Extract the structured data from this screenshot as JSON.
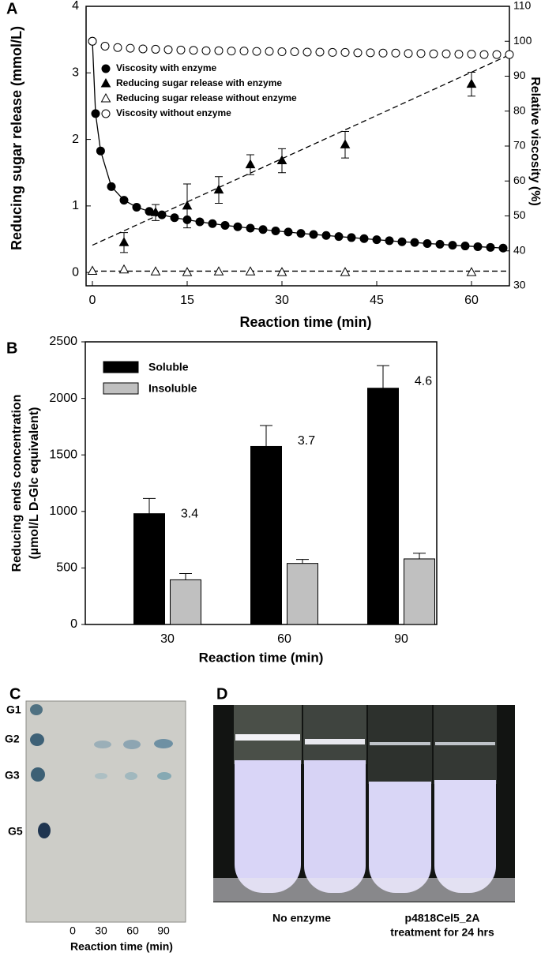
{
  "chart_data": [
    {
      "type": "scatter",
      "panel": "A",
      "xlabel": "Reaction time (min)",
      "ylabel": "Reducing sugar release (mmol/L)",
      "y2label": "Relative viscosity (%)",
      "xlim": [
        -1,
        66
      ],
      "ylim": [
        -0.2,
        4
      ],
      "y2lim": [
        30,
        110
      ],
      "xticks": [
        0,
        15,
        30,
        45,
        60
      ],
      "yticks": [
        0,
        1,
        2,
        3,
        4
      ],
      "y2ticks": [
        30,
        40,
        50,
        60,
        70,
        80,
        90,
        100,
        110
      ],
      "series": [
        {
          "name": "Viscosity with enzyme",
          "marker": "filled-circle",
          "line": "solid",
          "axis": "y2",
          "color": "#000000",
          "x": [
            0,
            0.5,
            1.3,
            3,
            5,
            7,
            9,
            11,
            13,
            15,
            17,
            19,
            21,
            23,
            25,
            27,
            29,
            31,
            33,
            35,
            37,
            39,
            41,
            43,
            45,
            47,
            49,
            51,
            53,
            55,
            57,
            59,
            61,
            63,
            65
          ],
          "values": [
            100,
            79.3,
            68.6,
            58.4,
            54.5,
            52.5,
            51.3,
            50.3,
            49.5,
            48.9,
            48.3,
            47.8,
            47.3,
            46.9,
            46.5,
            46.1,
            45.7,
            45.4,
            45.0,
            44.7,
            44.4,
            44.1,
            43.8,
            43.5,
            43.2,
            42.9,
            42.6,
            42.4,
            42.1,
            41.9,
            41.6,
            41.4,
            41.2,
            41.0,
            40.8
          ]
        },
        {
          "name": "Reducing sugar release with enzyme",
          "marker": "filled-triangle",
          "axis": "y",
          "color": "#000000",
          "x": [
            5,
            10,
            15,
            20,
            25,
            30,
            40,
            60
          ],
          "values": [
            0.45,
            0.9,
            1.0,
            1.24,
            1.62,
            1.68,
            1.92,
            2.83
          ],
          "errors": [
            0.15,
            0.12,
            0.33,
            0.2,
            0.15,
            0.18,
            0.2,
            0.18
          ]
        },
        {
          "name": "Reducing sugar release without enzyme",
          "marker": "open-triangle",
          "axis": "y",
          "color": "#000000",
          "x": [
            0,
            5,
            10,
            15,
            20,
            25,
            30,
            40,
            60
          ],
          "values": [
            0.02,
            0.04,
            0.01,
            0,
            0.01,
            0.01,
            0,
            0,
            0
          ]
        },
        {
          "name": "Viscosity without enzyme",
          "marker": "open-circle",
          "axis": "y2",
          "color": "#000000",
          "x": [
            0,
            2,
            4,
            6,
            8,
            10,
            12,
            14,
            16,
            18,
            20,
            22,
            24,
            26,
            28,
            30,
            32,
            34,
            36,
            38,
            40,
            42,
            44,
            46,
            48,
            50,
            52,
            54,
            56,
            58,
            60,
            62,
            64,
            66
          ],
          "values": [
            100,
            98.6,
            98.2,
            98.0,
            97.8,
            97.7,
            97.6,
            97.5,
            97.4,
            97.3,
            97.3,
            97.2,
            97.2,
            97.1,
            97.1,
            97.0,
            97.0,
            96.9,
            96.9,
            96.8,
            96.8,
            96.7,
            96.7,
            96.6,
            96.6,
            96.5,
            96.5,
            96.4,
            96.4,
            96.3,
            96.3,
            96.2,
            96.2,
            96.2
          ]
        }
      ],
      "fits": [
        {
          "axis": "y",
          "style": "dashed",
          "x": [
            0,
            66
          ],
          "values": [
            0.41,
            3.27
          ]
        },
        {
          "axis": "y",
          "style": "dashed",
          "x": [
            0,
            66
          ],
          "values": [
            0.02,
            0.02
          ]
        }
      ]
    },
    {
      "type": "bar",
      "panel": "B",
      "xlabel": "Reaction time (min)",
      "ylabel": [
        "Reducing ends concentration",
        "(µmol/L D-Glc equivalent)"
      ],
      "categories": [
        "30",
        "60",
        "90"
      ],
      "ylim": [
        0,
        2500
      ],
      "yticks": [
        0,
        500,
        1000,
        1500,
        2000,
        2500
      ],
      "series": [
        {
          "name": "Soluble",
          "color": "#000000",
          "values": [
            980,
            1575,
            2090
          ],
          "errors": [
            135,
            185,
            200
          ],
          "annotations": [
            "3.4",
            "3.7",
            "4.6"
          ]
        },
        {
          "name": "Insoluble",
          "color": "#c0c0c0",
          "values": [
            395,
            540,
            580
          ],
          "errors": [
            55,
            35,
            50
          ]
        }
      ]
    }
  ],
  "tlc": {
    "panel": "C",
    "standards": [
      "G1",
      "G2",
      "G3",
      "G5"
    ],
    "lanes": [
      "0",
      "30",
      "60",
      "90"
    ],
    "xlabel": "Reaction time (min)"
  },
  "photo": {
    "panel": "D",
    "control_label": "No enzyme",
    "treatment_label": [
      "p4818Cel5_2A",
      "treatment for 24 hrs"
    ]
  }
}
